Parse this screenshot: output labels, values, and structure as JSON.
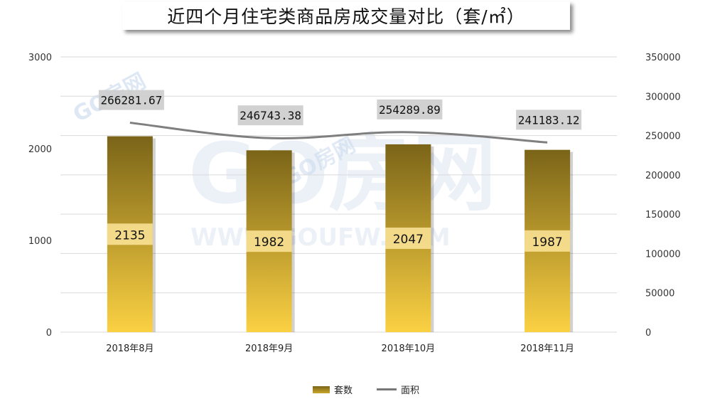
{
  "title": "近四个月住宅类商品房成交量对比（套/㎡）",
  "chart_data": {
    "type": "bar",
    "categories": [
      "2018年8月",
      "2018年9月",
      "2018年10月",
      "2018年11月"
    ],
    "series": [
      {
        "name": "套数",
        "type": "bar",
        "axis": "left",
        "values": [
          2135,
          1982,
          2047,
          1987
        ],
        "labels": [
          "2135",
          "1982",
          "2047",
          "1987"
        ]
      },
      {
        "name": "面积",
        "type": "line",
        "axis": "right",
        "values": [
          266281.67,
          246743.38,
          254289.89,
          241183.12
        ],
        "labels": [
          "266281.67",
          "246743.38",
          "254289.89",
          "241183.12"
        ]
      }
    ],
    "y_left": {
      "ticks": [
        "0",
        "1000",
        "2000",
        "3000"
      ],
      "range": [
        0,
        3000
      ]
    },
    "y_right": {
      "ticks": [
        "0",
        "50000",
        "100000",
        "150000",
        "200000",
        "250000",
        "300000",
        "350000"
      ],
      "range": [
        0,
        350000
      ]
    },
    "grid": true,
    "legend_position": "bottom"
  },
  "legend": {
    "bar_label": "套数",
    "line_label": "面积"
  },
  "colors": {
    "bar_top": "#7a6418",
    "bar_bottom": "#fbd143",
    "line": "#7f7f7f",
    "grid": "#d9d9d9",
    "label_bg": "#cccccc",
    "bar_label_bg": "#fde59a"
  },
  "watermark": {
    "text1": "GO房网",
    "text2": "WWW.GOUFW.COM"
  }
}
